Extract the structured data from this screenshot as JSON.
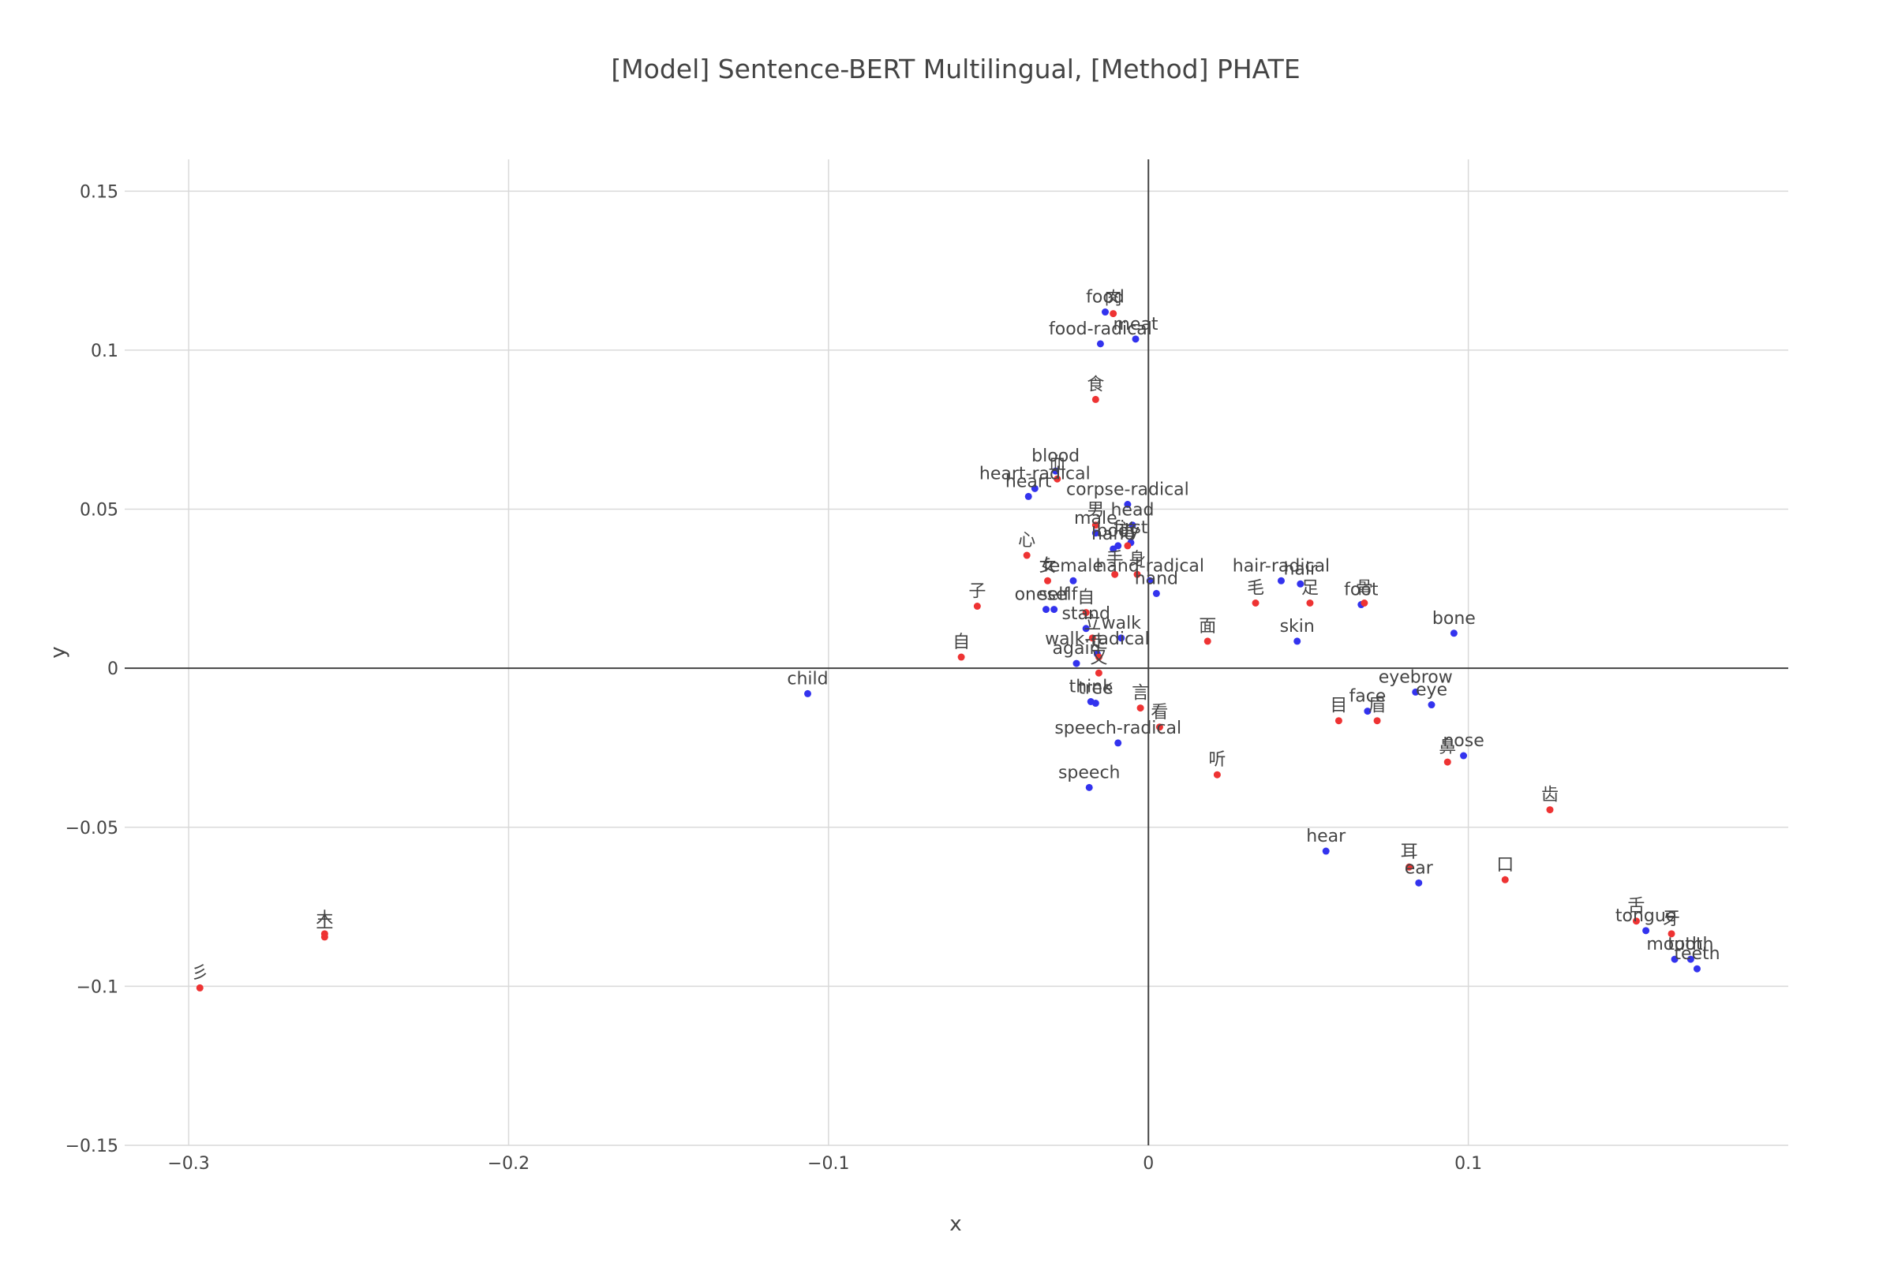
{
  "chart_data": {
    "type": "scatter",
    "title": "[Model] Sentence-BERT Multilingual, [Method] PHATE",
    "xlabel": "x",
    "ylabel": "y",
    "xlim": [
      -0.32,
      0.2
    ],
    "ylim": [
      -0.15,
      0.16
    ],
    "x_ticks": [
      -0.3,
      -0.2,
      -0.1,
      0,
      0.1
    ],
    "y_ticks": [
      -0.15,
      -0.1,
      -0.05,
      0,
      0.05,
      0.1,
      0.15
    ],
    "x_tick_labels": [
      "−0.3",
      "−0.2",
      "−0.1",
      "0",
      "0.1"
    ],
    "y_tick_labels": [
      "−0.15",
      "−0.1",
      "−0.05",
      "0",
      "0.05",
      "0.1",
      "0.15"
    ],
    "grid": true,
    "zero_lines": true,
    "colors": {
      "blue": "#3333ee",
      "red": "#ee3333",
      "grid": "#d9d9d9",
      "zero": "#444444"
    },
    "series": [
      {
        "color": "blue",
        "points": [
          {
            "label": "food",
            "x": -0.0135,
            "y": 0.112
          },
          {
            "label": "meat",
            "x": -0.004,
            "y": 0.1035
          },
          {
            "label": "food-radical",
            "x": -0.015,
            "y": 0.102
          },
          {
            "label": "blood",
            "x": -0.029,
            "y": 0.062
          },
          {
            "label": "heart-radical",
            "x": -0.0355,
            "y": 0.0565
          },
          {
            "label": "heart",
            "x": -0.0375,
            "y": 0.054
          },
          {
            "label": "corpse-radical",
            "x": -0.0065,
            "y": 0.0515
          },
          {
            "label": "head",
            "x": -0.005,
            "y": 0.045
          },
          {
            "label": "male",
            "x": -0.0165,
            "y": 0.0425
          },
          {
            "label": "first",
            "x": -0.0055,
            "y": 0.0395
          },
          {
            "label": "hand",
            "x": -0.011,
            "y": 0.0375
          },
          {
            "label": "body",
            "x": -0.0095,
            "y": 0.0385
          },
          {
            "label": "hand-radical",
            "x": 0.0005,
            "y": 0.0275
          },
          {
            "label": "hand",
            "x": 0.0025,
            "y": 0.0235
          },
          {
            "label": "female",
            "x": -0.0235,
            "y": 0.0275
          },
          {
            "label": "self",
            "x": -0.0295,
            "y": 0.0185
          },
          {
            "label": "oneself",
            "x": -0.032,
            "y": 0.0185
          },
          {
            "label": "stand",
            "x": -0.0195,
            "y": 0.0125
          },
          {
            "label": "walk",
            "x": -0.0085,
            "y": 0.0095
          },
          {
            "label": "walk-radical",
            "x": -0.016,
            "y": 0.0045
          },
          {
            "label": "again",
            "x": -0.0225,
            "y": 0.0015
          },
          {
            "label": "think",
            "x": -0.018,
            "y": -0.0105
          },
          {
            "label": "tree",
            "x": -0.0165,
            "y": -0.011
          },
          {
            "label": "speech-radical",
            "x": -0.0095,
            "y": -0.0235
          },
          {
            "label": "speech",
            "x": -0.0185,
            "y": -0.0375
          },
          {
            "label": "hair-radical",
            "x": 0.0415,
            "y": 0.0275
          },
          {
            "label": "hair",
            "x": 0.0475,
            "y": 0.0265
          },
          {
            "label": "foot",
            "x": 0.0665,
            "y": 0.02
          },
          {
            "label": "skin",
            "x": 0.0465,
            "y": 0.0085
          },
          {
            "label": "bone",
            "x": 0.0955,
            "y": 0.011
          },
          {
            "label": "child",
            "x": -0.1065,
            "y": -0.008
          },
          {
            "label": "eyebrow",
            "x": 0.0835,
            "y": -0.0075
          },
          {
            "label": "eye",
            "x": 0.0885,
            "y": -0.0115
          },
          {
            "label": "face",
            "x": 0.0685,
            "y": -0.0135
          },
          {
            "label": "nose",
            "x": 0.0985,
            "y": -0.0275
          },
          {
            "label": "hear",
            "x": 0.0555,
            "y": -0.0575
          },
          {
            "label": "ear",
            "x": 0.0845,
            "y": -0.0675
          },
          {
            "label": "tongue",
            "x": 0.1555,
            "y": -0.0825
          },
          {
            "label": "mouth",
            "x": 0.1645,
            "y": -0.0915
          },
          {
            "label": "tooth",
            "x": 0.1695,
            "y": -0.0915
          },
          {
            "label": "teeth",
            "x": 0.1715,
            "y": -0.0945
          }
        ]
      },
      {
        "color": "red",
        "points": [
          {
            "label": "肉",
            "x": -0.011,
            "y": 0.1115
          },
          {
            "label": "食",
            "x": -0.0165,
            "y": 0.0845
          },
          {
            "label": "血",
            "x": -0.0285,
            "y": 0.0595
          },
          {
            "label": "心",
            "x": -0.038,
            "y": 0.0355
          },
          {
            "label": "男",
            "x": -0.0165,
            "y": 0.045
          },
          {
            "label": "首",
            "x": -0.0065,
            "y": 0.0385
          },
          {
            "label": "身",
            "x": -0.0035,
            "y": 0.0295
          },
          {
            "label": "手",
            "x": -0.0105,
            "y": 0.0295
          },
          {
            "label": "女",
            "x": -0.0315,
            "y": 0.0275
          },
          {
            "label": "子",
            "x": -0.0535,
            "y": 0.0195
          },
          {
            "label": "自",
            "x": -0.0195,
            "y": 0.0175
          },
          {
            "label": "立",
            "x": -0.0175,
            "y": 0.0095
          },
          {
            "label": "走",
            "x": -0.0155,
            "y": 0.0035
          },
          {
            "label": "又",
            "x": -0.0155,
            "y": -0.0015
          },
          {
            "label": "自",
            "x": -0.0585,
            "y": 0.0035
          },
          {
            "label": "言",
            "x": -0.0025,
            "y": -0.0125
          },
          {
            "label": "看",
            "x": 0.0035,
            "y": -0.0185
          },
          {
            "label": "听",
            "x": 0.0215,
            "y": -0.0335
          },
          {
            "label": "面",
            "x": 0.0185,
            "y": 0.0085
          },
          {
            "label": "毛",
            "x": 0.0335,
            "y": 0.0205
          },
          {
            "label": "足",
            "x": 0.0505,
            "y": 0.0205
          },
          {
            "label": "骨",
            "x": 0.0675,
            "y": 0.0205
          },
          {
            "label": "目",
            "x": 0.0595,
            "y": -0.0165
          },
          {
            "label": "眉",
            "x": 0.0715,
            "y": -0.0165
          },
          {
            "label": "鼻",
            "x": 0.0935,
            "y": -0.0295
          },
          {
            "label": "耳",
            "x": 0.0815,
            "y": -0.0625
          },
          {
            "label": "口",
            "x": 0.1115,
            "y": -0.0665
          },
          {
            "label": "齿",
            "x": 0.1255,
            "y": -0.0445
          },
          {
            "label": "舌",
            "x": 0.1525,
            "y": -0.0795
          },
          {
            "label": "牙",
            "x": 0.1635,
            "y": -0.0835
          },
          {
            "label": "彡",
            "x": -0.2965,
            "y": -0.1005
          },
          {
            "label": "木",
            "x": -0.2575,
            "y": -0.0835
          },
          {
            "label": "土",
            "x": -0.2575,
            "y": -0.0845
          }
        ]
      }
    ]
  }
}
